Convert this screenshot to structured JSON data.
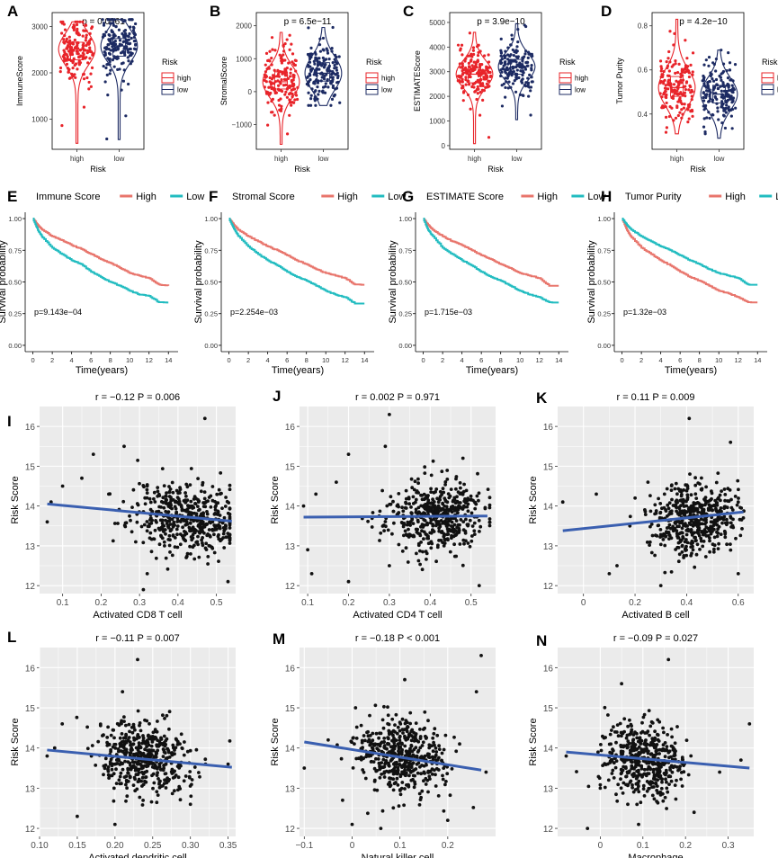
{
  "figure": {
    "colors": {
      "high": "#e8242a",
      "low": "#1d2b63",
      "km_high": "#e8756c",
      "km_low": "#22bcc0",
      "fit": "#3a5fb0",
      "panel_bg": "#ebebeb",
      "grid": "#ffffff",
      "point": "#111111"
    },
    "violin_legend": {
      "title": "Risk",
      "items": [
        "high",
        "low"
      ]
    },
    "violin_xlabel": "Risk",
    "km_legend_items": [
      "High",
      "Low"
    ],
    "km_ylabel": "Survival probability",
    "km_xlabel": "Time(years)",
    "scatter_ylabel": "Risk Score"
  },
  "chart_data": [
    {
      "type": "violin",
      "letter": "A",
      "ylabel": "ImmuneScore",
      "pvalue": "p = 0.0061",
      "categories": [
        "high",
        "low"
      ],
      "ylim": [
        350,
        3300
      ],
      "yticks": [
        1000,
        2000,
        3000
      ],
      "groups": [
        {
          "name": "high",
          "median": 2510,
          "q1": 2280,
          "q3": 2660,
          "min": 480,
          "max": 3100
        },
        {
          "name": "low",
          "median": 2580,
          "q1": 2360,
          "q3": 2740,
          "min": 560,
          "max": 3150
        }
      ]
    },
    {
      "type": "violin",
      "letter": "B",
      "ylabel": "StromalScore",
      "pvalue": "p = 6.5e−11",
      "categories": [
        "high",
        "low"
      ],
      "ylim": [
        -1750,
        2400
      ],
      "yticks": [
        -1000,
        0,
        1000,
        2000
      ],
      "groups": [
        {
          "name": "high",
          "median": 300,
          "q1": 80,
          "q3": 600,
          "min": -1600,
          "max": 1800
        },
        {
          "name": "low",
          "median": 560,
          "q1": 320,
          "q3": 880,
          "min": -420,
          "max": 1950
        }
      ]
    },
    {
      "type": "violin",
      "letter": "C",
      "ylabel": "ESTIMATEScore",
      "pvalue": "p = 3.9e−10",
      "categories": [
        "high",
        "low"
      ],
      "ylim": [
        -150,
        5400
      ],
      "yticks": [
        0,
        1000,
        2000,
        3000,
        4000,
        5000
      ],
      "groups": [
        {
          "name": "high",
          "median": 2900,
          "q1": 2550,
          "q3": 3150,
          "min": 80,
          "max": 4600
        },
        {
          "name": "low",
          "median": 3200,
          "q1": 2900,
          "q3": 3500,
          "min": 1050,
          "max": 4950
        }
      ]
    },
    {
      "type": "violin",
      "letter": "D",
      "ylabel": "Tumor Purity",
      "pvalue": "p = 4.2e−10",
      "categories": [
        "high",
        "low"
      ],
      "ylim": [
        0.24,
        0.86
      ],
      "yticks": [
        0.4,
        0.6,
        0.8
      ],
      "groups": [
        {
          "name": "high",
          "median": 0.52,
          "q1": 0.48,
          "q3": 0.57,
          "min": 0.31,
          "max": 0.83
        },
        {
          "name": "low",
          "median": 0.49,
          "q1": 0.45,
          "q3": 0.53,
          "min": 0.29,
          "max": 0.69
        }
      ]
    },
    {
      "type": "line",
      "letter": "E",
      "title": "Immune Score",
      "pvalue": "p=9.143e−04",
      "xlim": [
        -0.8,
        15
      ],
      "ylim": [
        -0.05,
        1.05
      ],
      "xticks": [
        0,
        2,
        4,
        6,
        8,
        10,
        12,
        14
      ],
      "yticks": [
        0,
        0.25,
        0.5,
        0.75,
        1
      ],
      "ytick_labels": [
        "0.00",
        "0.25",
        "0.50",
        "0.75",
        "1.00"
      ],
      "series": [
        {
          "name": "High",
          "x": [
            0,
            0.5,
            1,
            2,
            3,
            4,
            5,
            6,
            7,
            8,
            9,
            10,
            11,
            12,
            13,
            14
          ],
          "y": [
            1,
            0.95,
            0.91,
            0.86,
            0.83,
            0.79,
            0.76,
            0.72,
            0.68,
            0.65,
            0.61,
            0.57,
            0.55,
            0.53,
            0.48,
            0.47
          ]
        },
        {
          "name": "Low",
          "x": [
            0,
            0.5,
            1,
            2,
            3,
            4,
            5,
            6,
            7,
            8,
            9,
            10,
            11,
            12,
            13,
            14
          ],
          "y": [
            1,
            0.91,
            0.85,
            0.77,
            0.72,
            0.67,
            0.64,
            0.58,
            0.54,
            0.5,
            0.47,
            0.43,
            0.4,
            0.39,
            0.34,
            0.34
          ]
        }
      ]
    },
    {
      "type": "line",
      "letter": "F",
      "title": "Stromal Score",
      "pvalue": "p=2.254e−03",
      "xlim": [
        -0.8,
        15
      ],
      "ylim": [
        -0.05,
        1.05
      ],
      "xticks": [
        0,
        2,
        4,
        6,
        8,
        10,
        12,
        14
      ],
      "yticks": [
        0,
        0.25,
        0.5,
        0.75,
        1
      ],
      "ytick_labels": [
        "0.00",
        "0.25",
        "0.50",
        "0.75",
        "1.00"
      ],
      "series": [
        {
          "name": "High",
          "x": [
            0,
            0.5,
            1,
            2,
            3,
            4,
            5,
            6,
            7,
            8,
            9,
            10,
            11,
            12,
            13,
            14
          ],
          "y": [
            1,
            0.95,
            0.91,
            0.86,
            0.82,
            0.78,
            0.75,
            0.71,
            0.67,
            0.64,
            0.6,
            0.57,
            0.55,
            0.53,
            0.48,
            0.48
          ]
        },
        {
          "name": "Low",
          "x": [
            0,
            0.5,
            1,
            2,
            3,
            4,
            5,
            6,
            7,
            8,
            9,
            10,
            11,
            12,
            13,
            14
          ],
          "y": [
            1,
            0.92,
            0.86,
            0.78,
            0.72,
            0.67,
            0.63,
            0.58,
            0.54,
            0.51,
            0.47,
            0.43,
            0.4,
            0.38,
            0.33,
            0.33
          ]
        }
      ]
    },
    {
      "type": "line",
      "letter": "G",
      "title": "ESTIMATE Score",
      "pvalue": "p=1.715e−03",
      "xlim": [
        -0.8,
        15
      ],
      "ylim": [
        -0.05,
        1.05
      ],
      "xticks": [
        0,
        2,
        4,
        6,
        8,
        10,
        12,
        14
      ],
      "yticks": [
        0,
        0.25,
        0.5,
        0.75,
        1
      ],
      "ytick_labels": [
        "0.00",
        "0.25",
        "0.50",
        "0.75",
        "1.00"
      ],
      "series": [
        {
          "name": "High",
          "x": [
            0,
            0.5,
            1,
            2,
            3,
            4,
            5,
            6,
            7,
            8,
            9,
            10,
            11,
            12,
            13,
            14
          ],
          "y": [
            1,
            0.95,
            0.91,
            0.86,
            0.82,
            0.79,
            0.75,
            0.71,
            0.68,
            0.64,
            0.61,
            0.57,
            0.55,
            0.53,
            0.47,
            0.47
          ]
        },
        {
          "name": "Low",
          "x": [
            0,
            0.5,
            1,
            2,
            3,
            4,
            5,
            6,
            7,
            8,
            9,
            10,
            11,
            12,
            13,
            14
          ],
          "y": [
            1,
            0.91,
            0.86,
            0.77,
            0.72,
            0.67,
            0.63,
            0.58,
            0.54,
            0.51,
            0.47,
            0.43,
            0.4,
            0.38,
            0.34,
            0.34
          ]
        }
      ]
    },
    {
      "type": "line",
      "letter": "H",
      "title": "Tumor Purity",
      "pvalue": "p=1.32e−03",
      "xlim": [
        -0.8,
        15
      ],
      "ylim": [
        -0.05,
        1.05
      ],
      "xticks": [
        0,
        2,
        4,
        6,
        8,
        10,
        12,
        14
      ],
      "yticks": [
        0,
        0.25,
        0.5,
        0.75,
        1
      ],
      "ytick_labels": [
        "0.00",
        "0.25",
        "0.50",
        "0.75",
        "1.00"
      ],
      "series": [
        {
          "name": "High",
          "x": [
            0,
            0.5,
            1,
            2,
            3,
            4,
            5,
            6,
            7,
            8,
            9,
            10,
            11,
            12,
            13,
            14
          ],
          "y": [
            1,
            0.91,
            0.85,
            0.77,
            0.72,
            0.67,
            0.63,
            0.58,
            0.54,
            0.51,
            0.47,
            0.43,
            0.41,
            0.38,
            0.34,
            0.34
          ]
        },
        {
          "name": "Low",
          "x": [
            0,
            0.5,
            1,
            2,
            3,
            4,
            5,
            6,
            7,
            8,
            9,
            10,
            11,
            12,
            13,
            14
          ],
          "y": [
            1,
            0.95,
            0.91,
            0.86,
            0.82,
            0.78,
            0.75,
            0.71,
            0.67,
            0.64,
            0.6,
            0.57,
            0.55,
            0.53,
            0.48,
            0.48
          ]
        }
      ]
    },
    {
      "type": "scatter",
      "letter": "I",
      "title": "r = −0.12    P = 0.006",
      "xlabel": "Activated CD8 T cell",
      "xlim": [
        0.04,
        0.55
      ],
      "ylim": [
        11.8,
        16.5
      ],
      "xticks": [
        0.1,
        0.2,
        0.3,
        0.4,
        0.5
      ],
      "yticks": [
        12,
        13,
        14,
        15,
        16
      ],
      "fit": {
        "x": [
          0.06,
          0.54
        ],
        "y": [
          14.05,
          13.62
        ]
      },
      "cloud": {
        "x_mean": 0.42,
        "x_sd": 0.07,
        "y_mean": 13.75,
        "y_sd": 0.45,
        "n": 480,
        "seed": 11
      },
      "outliers": [
        {
          "x": 0.1,
          "y": 14.5
        },
        {
          "x": 0.15,
          "y": 14.7
        },
        {
          "x": 0.18,
          "y": 15.3
        },
        {
          "x": 0.26,
          "y": 15.5
        },
        {
          "x": 0.32,
          "y": 12.3
        },
        {
          "x": 0.31,
          "y": 11.9
        },
        {
          "x": 0.47,
          "y": 16.2
        },
        {
          "x": 0.53,
          "y": 12.1
        },
        {
          "x": 0.06,
          "y": 13.6
        },
        {
          "x": 0.07,
          "y": 14.1
        },
        {
          "x": 0.22,
          "y": 14.3
        },
        {
          "x": 0.29,
          "y": 13.1
        }
      ]
    },
    {
      "type": "scatter",
      "letter": "J",
      "title": "r = 0.002    P = 0.971",
      "xlabel": "Activated CD4 T cell",
      "xlim": [
        0.08,
        0.56
      ],
      "ylim": [
        11.8,
        16.5
      ],
      "xticks": [
        0.1,
        0.2,
        0.3,
        0.4,
        0.5
      ],
      "yticks": [
        12,
        13,
        14,
        15,
        16
      ],
      "fit": {
        "x": [
          0.09,
          0.54
        ],
        "y": [
          13.72,
          13.75
        ]
      },
      "cloud": {
        "x_mean": 0.41,
        "x_sd": 0.06,
        "y_mean": 13.75,
        "y_sd": 0.45,
        "n": 480,
        "seed": 23
      },
      "outliers": [
        {
          "x": 0.1,
          "y": 12.9
        },
        {
          "x": 0.11,
          "y": 12.3
        },
        {
          "x": 0.12,
          "y": 14.3
        },
        {
          "x": 0.17,
          "y": 14.6
        },
        {
          "x": 0.2,
          "y": 15.3
        },
        {
          "x": 0.2,
          "y": 12.1
        },
        {
          "x": 0.3,
          "y": 16.3
        },
        {
          "x": 0.29,
          "y": 15.5
        },
        {
          "x": 0.3,
          "y": 12.5
        },
        {
          "x": 0.48,
          "y": 15.2
        },
        {
          "x": 0.52,
          "y": 12.0
        },
        {
          "x": 0.09,
          "y": 14.0
        }
      ]
    },
    {
      "type": "scatter",
      "letter": "K",
      "title": "r = 0.11    P = 0.009",
      "xlabel": "Activated B cell",
      "xlim": [
        -0.1,
        0.66
      ],
      "ylim": [
        11.8,
        16.5
      ],
      "xticks": [
        0.0,
        0.2,
        0.4,
        0.6
      ],
      "yticks": [
        12,
        13,
        14,
        15,
        16
      ],
      "fit": {
        "x": [
          -0.08,
          0.62
        ],
        "y": [
          13.38,
          13.85
        ]
      },
      "cloud": {
        "x_mean": 0.43,
        "x_sd": 0.08,
        "y_mean": 13.75,
        "y_sd": 0.45,
        "n": 480,
        "seed": 37
      },
      "outliers": [
        {
          "x": -0.08,
          "y": 14.1
        },
        {
          "x": 0.05,
          "y": 14.3
        },
        {
          "x": 0.1,
          "y": 12.3
        },
        {
          "x": 0.13,
          "y": 12.5
        },
        {
          "x": 0.2,
          "y": 14.2
        },
        {
          "x": 0.3,
          "y": 12.0
        },
        {
          "x": 0.41,
          "y": 16.2
        },
        {
          "x": 0.57,
          "y": 15.6
        },
        {
          "x": 0.6,
          "y": 12.3
        },
        {
          "x": 0.62,
          "y": 13.7
        },
        {
          "x": 0.18,
          "y": 13.5
        },
        {
          "x": 0.25,
          "y": 14.6
        }
      ]
    },
    {
      "type": "scatter",
      "letter": "L",
      "title": "r = −0.11    P = 0.007",
      "xlabel": "Activated dendritic cell",
      "xlim": [
        0.1,
        0.36
      ],
      "ylim": [
        11.8,
        16.5
      ],
      "xticks": [
        0.1,
        0.15,
        0.2,
        0.25,
        0.3,
        0.35
      ],
      "xtick_labels": [
        "0.10",
        "0.15",
        "0.20",
        "0.25",
        "0.30",
        "0.35"
      ],
      "yticks": [
        12,
        13,
        14,
        15,
        16
      ],
      "fit": {
        "x": [
          0.11,
          0.355
        ],
        "y": [
          13.95,
          13.52
        ]
      },
      "cloud": {
        "x_mean": 0.24,
        "x_sd": 0.03,
        "y_mean": 13.75,
        "y_sd": 0.45,
        "n": 480,
        "seed": 51
      },
      "outliers": [
        {
          "x": 0.11,
          "y": 13.8
        },
        {
          "x": 0.13,
          "y": 14.6
        },
        {
          "x": 0.15,
          "y": 12.3
        },
        {
          "x": 0.23,
          "y": 16.2
        },
        {
          "x": 0.2,
          "y": 12.1
        },
        {
          "x": 0.32,
          "y": 13.6
        },
        {
          "x": 0.35,
          "y": 13.6
        },
        {
          "x": 0.21,
          "y": 15.4
        },
        {
          "x": 0.12,
          "y": 14.0
        },
        {
          "x": 0.3,
          "y": 12.6
        }
      ]
    },
    {
      "type": "scatter",
      "letter": "M",
      "title": "r = −0.18    P < 0.001",
      "xlabel": "Natural killer cell",
      "xlim": [
        -0.11,
        0.3
      ],
      "ylim": [
        11.8,
        16.5
      ],
      "xticks": [
        -0.1,
        0.0,
        0.1,
        0.2
      ],
      "yticks": [
        12,
        13,
        14,
        15,
        16
      ],
      "fit": {
        "x": [
          -0.1,
          0.27
        ],
        "y": [
          14.15,
          13.45
        ]
      },
      "cloud": {
        "x_mean": 0.1,
        "x_sd": 0.045,
        "y_mean": 13.75,
        "y_sd": 0.45,
        "n": 480,
        "seed": 67
      },
      "outliers": [
        {
          "x": -0.1,
          "y": 13.5
        },
        {
          "x": 0.27,
          "y": 16.3
        },
        {
          "x": 0.26,
          "y": 15.4
        },
        {
          "x": 0.0,
          "y": 12.1
        },
        {
          "x": 0.06,
          "y": 12.0
        },
        {
          "x": -0.05,
          "y": 14.2
        },
        {
          "x": 0.28,
          "y": 13.4
        },
        {
          "x": 0.11,
          "y": 15.7
        },
        {
          "x": -0.02,
          "y": 12.7
        },
        {
          "x": 0.2,
          "y": 12.2
        }
      ]
    },
    {
      "type": "scatter",
      "letter": "N",
      "title": "r = −0.09    P = 0.027",
      "xlabel": "Macrophage",
      "xlim": [
        -0.1,
        0.36
      ],
      "ylim": [
        11.8,
        16.5
      ],
      "xticks": [
        0.0,
        0.1,
        0.2,
        0.3
      ],
      "yticks": [
        12,
        13,
        14,
        15,
        16
      ],
      "fit": {
        "x": [
          -0.08,
          0.35
        ],
        "y": [
          13.9,
          13.5
        ]
      },
      "cloud": {
        "x_mean": 0.1,
        "x_sd": 0.05,
        "y_mean": 13.75,
        "y_sd": 0.45,
        "n": 480,
        "seed": 79
      },
      "outliers": [
        {
          "x": -0.08,
          "y": 13.8
        },
        {
          "x": -0.03,
          "y": 12.0
        },
        {
          "x": 0.16,
          "y": 16.2
        },
        {
          "x": 0.33,
          "y": 13.7
        },
        {
          "x": 0.35,
          "y": 14.6
        },
        {
          "x": 0.05,
          "y": 15.6
        },
        {
          "x": 0.22,
          "y": 12.4
        },
        {
          "x": 0.0,
          "y": 13.0
        },
        {
          "x": 0.28,
          "y": 13.4
        },
        {
          "x": 0.09,
          "y": 12.1
        }
      ]
    }
  ]
}
